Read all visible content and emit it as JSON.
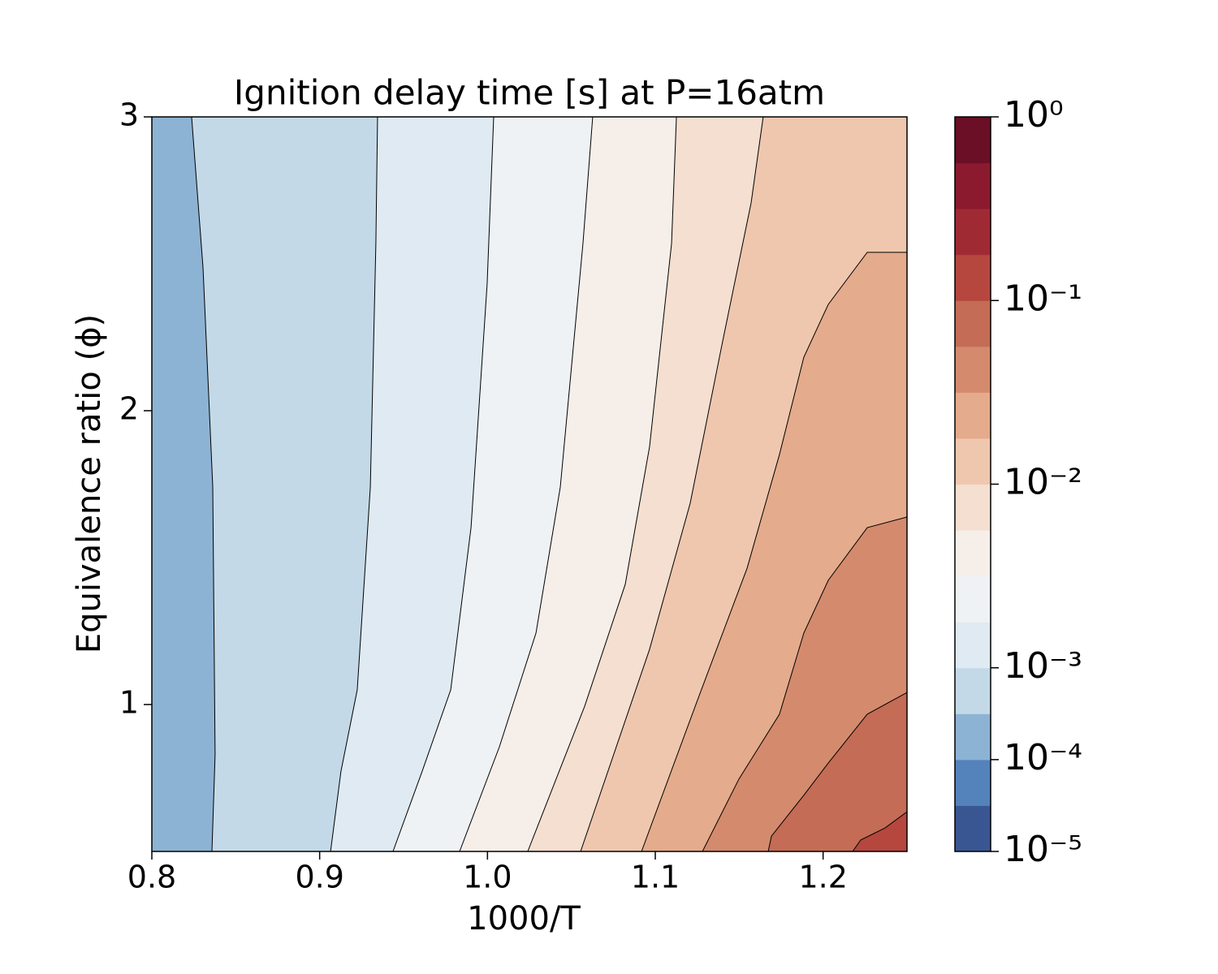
{
  "chart_data": {
    "type": "contour",
    "title": "Ignition delay time [s] at P=16atm",
    "xlabel": "1000/T",
    "ylabel": "Equivalence ratio (ϕ)",
    "xlim": [
      0.8,
      1.25
    ],
    "ylim": [
      0.5,
      3
    ],
    "xticks": [
      0.8,
      0.9,
      {
        "value": 1.0,
        "label": "1.0"
      },
      1.1,
      1.2
    ],
    "yticks": [
      1,
      2,
      3
    ],
    "colorbar": {
      "log": true,
      "levels": [
        1e-05,
        3.16e-05,
        0.0001,
        0.000316,
        0.001,
        0.00178,
        0.00316,
        0.00562,
        0.01,
        0.0178,
        0.0316,
        0.0562,
        0.1,
        0.178,
        0.316,
        0.562,
        1
      ],
      "colors": [
        "#3a5692",
        "#5482bb",
        "#8db3d4",
        "#c3d9e8",
        "#dfeaf2",
        "#eef2f5",
        "#f6eee9",
        "#f4dfd0",
        "#efc7ae",
        "#e4ab8c",
        "#d48a6d",
        "#c46c55",
        "#b5473f",
        "#a02a34",
        "#8b1a2e",
        "#6a0f26"
      ],
      "ticks": [
        {
          "value": 1e-05,
          "label": "10⁻⁵"
        },
        {
          "value": 0.0001,
          "label": "10⁻⁴"
        },
        {
          "value": 0.001,
          "label": "10⁻³"
        },
        {
          "value": 0.01,
          "label": "10⁻²"
        },
        {
          "value": 0.1,
          "label": "10⁻¹"
        },
        {
          "value": 1,
          "label": "10⁰"
        }
      ]
    },
    "contour_lines": [
      {
        "level": 0.000316,
        "x": [
          0.8237,
          0.8305,
          0.8363,
          0.8377,
          0.8358
        ],
        "y": [
          3,
          2.486,
          1.74,
          0.829,
          0.5
        ]
      },
      {
        "level": 0.001,
        "x": [
          0.9345,
          0.9335,
          0.9302,
          0.9224,
          0.9127,
          0.9065
        ],
        "y": [
          3,
          2.569,
          1.74,
          1.05,
          0.773,
          0.5
        ]
      },
      {
        "level": 0.00178,
        "x": [
          1.0037,
          0.9998,
          0.9902,
          0.9781,
          0.9611,
          0.9437
        ],
        "y": [
          3,
          2.431,
          1.602,
          1.05,
          0.773,
          0.5
        ]
      },
      {
        "level": 0.00316,
        "x": [
          1.0627,
          1.0569,
          1.0434,
          1.0289,
          1.0071,
          0.9834
        ],
        "y": [
          3,
          2.569,
          1.74,
          1.243,
          0.856,
          0.5
        ]
      },
      {
        "level": 0.00562,
        "x": [
          1.1126,
          1.1097,
          1.0966,
          1.0821,
          1.0579,
          1.024
        ],
        "y": [
          3,
          2.569,
          1.878,
          1.409,
          0.994,
          0.5
        ]
      },
      {
        "level": 0.01,
        "x": [
          1.1643,
          1.1571,
          1.1402,
          1.1208,
          1.0966,
          1.0555
        ],
        "y": [
          3,
          2.707,
          2.238,
          1.685,
          1.188,
          0.5
        ]
      },
      {
        "level": 0.0178,
        "x": [
          1.25,
          1.2263,
          1.2031,
          1.1885,
          1.174,
          1.1547,
          1.1256,
          1.0918
        ],
        "y": [
          2.539,
          2.539,
          2.362,
          2.182,
          1.851,
          1.464,
          1.022,
          0.5
        ]
      },
      {
        "level": 0.0316,
        "x": [
          1.25,
          1.2263,
          1.2031,
          1.1885,
          1.174,
          1.1498,
          1.1281
        ],
        "y": [
          1.638,
          1.602,
          1.423,
          1.243,
          0.967,
          0.746,
          0.5
        ]
      },
      {
        "level": 0.0562,
        "x": [
          1.25,
          1.2263,
          1.2031,
          1.1885,
          1.1692,
          1.1673
        ],
        "y": [
          1.041,
          0.967,
          0.801,
          0.691,
          0.552,
          0.5
        ]
      },
      {
        "level": 0.1,
        "x": [
          1.25,
          1.2369,
          1.2224,
          1.2176
        ],
        "y": [
          0.635,
          0.58,
          0.539,
          0.5
        ]
      }
    ]
  }
}
